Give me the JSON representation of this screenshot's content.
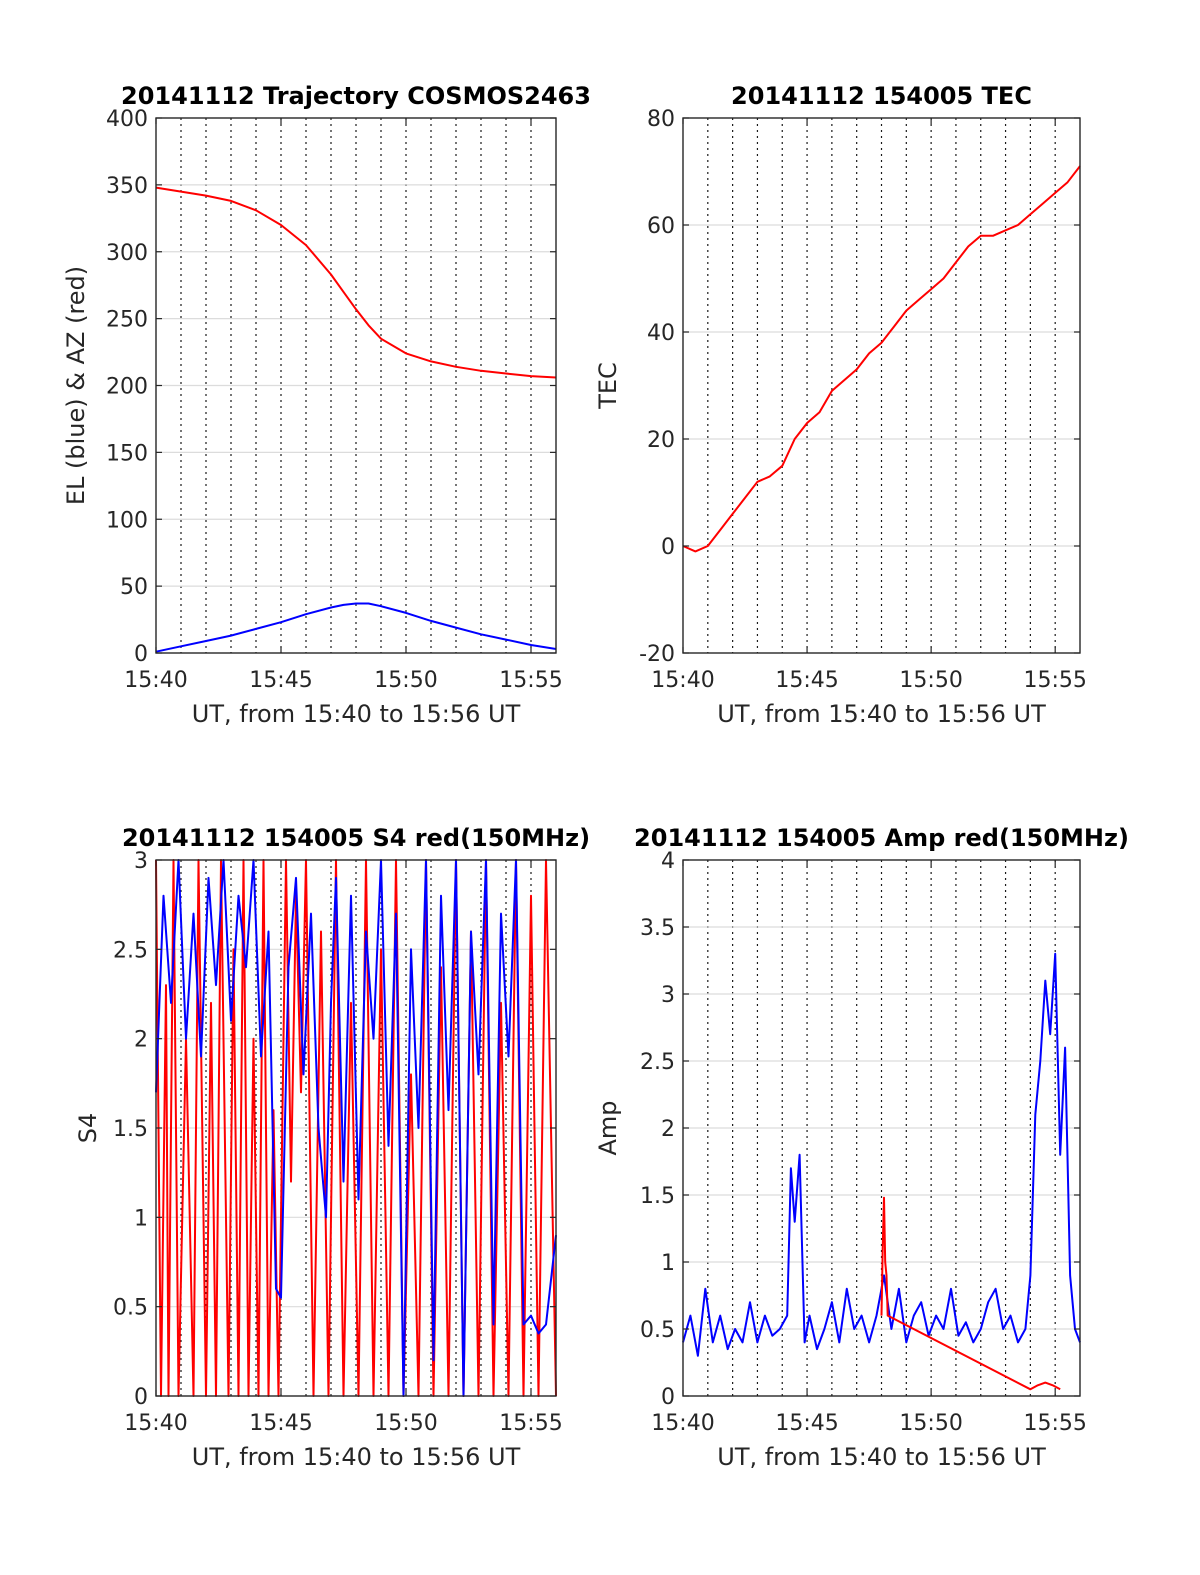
{
  "chart_data": [
    {
      "type": "line",
      "title": "20141112 Trajectory COSMOS2463",
      "xlabel": "UT, from 15:40 to 15:56 UT",
      "ylabel": "EL (blue) & AZ (red)",
      "xlim": [
        0,
        16
      ],
      "ylim": [
        0,
        400
      ],
      "x_ticks": [
        0,
        5,
        10,
        15
      ],
      "x_tick_labels": [
        "15:40",
        "15:45",
        "15:50",
        "15:55"
      ],
      "y_ticks": [
        0,
        50,
        100,
        150,
        200,
        250,
        300,
        350,
        400
      ],
      "y_tick_labels": [
        "0",
        "50",
        "100",
        "150",
        "200",
        "250",
        "300",
        "350",
        "400"
      ],
      "grid": "on",
      "series": [
        {
          "color": "#ff0000",
          "x": [
            0,
            1,
            2,
            3,
            4,
            5,
            6,
            7,
            7.5,
            8,
            8.5,
            9,
            10,
            11,
            12,
            13,
            14,
            15,
            16
          ],
          "values": [
            348,
            345,
            342,
            338,
            331,
            320,
            305,
            283,
            270,
            257,
            245,
            235,
            224,
            218,
            214,
            211,
            209,
            207,
            206
          ]
        },
        {
          "color": "#0000ff",
          "x": [
            0,
            1,
            2,
            3,
            4,
            5,
            6,
            7,
            7.5,
            8,
            8.5,
            9,
            10,
            11,
            12,
            13,
            14,
            15,
            16
          ],
          "values": [
            1,
            5,
            9,
            13,
            18,
            23,
            29,
            34,
            36,
            37,
            37,
            35,
            30,
            24,
            19,
            14,
            10,
            6,
            3
          ]
        }
      ]
    },
    {
      "type": "line",
      "title": "20141112 154005 TEC",
      "xlabel": "UT, from 15:40 to 15:56 UT",
      "ylabel": "TEC",
      "xlim": [
        0,
        16
      ],
      "ylim": [
        -20,
        80
      ],
      "x_ticks": [
        0,
        5,
        10,
        15
      ],
      "x_tick_labels": [
        "15:40",
        "15:45",
        "15:50",
        "15:55"
      ],
      "y_ticks": [
        -20,
        0,
        20,
        40,
        60,
        80
      ],
      "y_tick_labels": [
        "-20",
        "0",
        "20",
        "40",
        "60",
        "80"
      ],
      "grid": "on",
      "series": [
        {
          "color": "#ff0000",
          "x": [
            0,
            0.5,
            1,
            1.5,
            2,
            2.5,
            3,
            3.5,
            4,
            4.5,
            5,
            5.5,
            6,
            6.5,
            7,
            7.5,
            8,
            8.5,
            9,
            9.5,
            10,
            10.5,
            11,
            11.5,
            12,
            12.5,
            13,
            13.5,
            14,
            14.5,
            15,
            15.5,
            16
          ],
          "values": [
            0,
            -1,
            0,
            3,
            6,
            9,
            12,
            13,
            15,
            20,
            23,
            25,
            29,
            31,
            33,
            36,
            38,
            41,
            44,
            46,
            48,
            50,
            53,
            56,
            58,
            58,
            59,
            60,
            62,
            64,
            66,
            68,
            71
          ]
        }
      ]
    },
    {
      "type": "line",
      "title": "20141112 154005 S4 red(150MHz)",
      "xlabel": "UT, from 15:40 to 15:56 UT",
      "ylabel": "S4",
      "xlim": [
        0,
        16
      ],
      "ylim": [
        0,
        3
      ],
      "x_ticks": [
        0,
        5,
        10,
        15
      ],
      "x_tick_labels": [
        "15:40",
        "15:45",
        "15:50",
        "15:55"
      ],
      "y_ticks": [
        0,
        0.5,
        1,
        1.5,
        2,
        2.5,
        3
      ],
      "y_tick_labels": [
        "0",
        "0.5",
        "1",
        "1.5",
        "2",
        "2.5",
        "3"
      ],
      "grid": "on",
      "series": [
        {
          "color": "#ff0000",
          "x": [
            0,
            0.2,
            0.4,
            0.5,
            0.7,
            0.9,
            1.2,
            1.5,
            1.7,
            2.0,
            2.2,
            2.4,
            2.6,
            2.9,
            3.1,
            3.3,
            3.5,
            3.7,
            3.9,
            4.1,
            4.3,
            4.5,
            4.7,
            4.9,
            5.2,
            5.4,
            5.6,
            5.8,
            6.0,
            6.3,
            6.6,
            6.9,
            7.2,
            7.5,
            7.8,
            8.1,
            8.4,
            8.7,
            9.0,
            9.3,
            9.6,
            9.9,
            10.2,
            10.5,
            10.8,
            11.1,
            11.4,
            11.7,
            12.0,
            12.3,
            12.6,
            12.9,
            13.2,
            13.5,
            13.8,
            14.1,
            14.4,
            14.7,
            15.0,
            15.3,
            15.6,
            16.0
          ],
          "values": [
            3.0,
            0.0,
            2.3,
            0.0,
            3.0,
            0.0,
            2.0,
            0.0,
            3.0,
            0.0,
            2.2,
            0.0,
            3.0,
            0.0,
            2.5,
            0.0,
            3.0,
            0.0,
            2.0,
            0.0,
            3.0,
            0.0,
            1.6,
            0.0,
            3.0,
            1.2,
            2.8,
            1.7,
            3.0,
            0.0,
            2.6,
            0.0,
            3.0,
            0.0,
            2.2,
            0.0,
            3.0,
            0.0,
            2.5,
            0.0,
            3.0,
            0.0,
            1.8,
            0.0,
            3.0,
            0.0,
            2.4,
            0.0,
            3.0,
            0.0,
            2.6,
            0.0,
            3.0,
            0.0,
            2.2,
            0.0,
            3.0,
            0.0,
            2.8,
            0.0,
            3.0,
            0.0
          ]
        },
        {
          "color": "#0000ff",
          "x": [
            0,
            0.3,
            0.6,
            0.9,
            1.2,
            1.5,
            1.8,
            2.1,
            2.4,
            2.7,
            3.0,
            3.3,
            3.6,
            3.9,
            4.2,
            4.5,
            4.8,
            5.0,
            5.3,
            5.6,
            5.9,
            6.2,
            6.5,
            6.8,
            7.0,
            7.2,
            7.5,
            7.8,
            8.1,
            8.4,
            8.7,
            9.0,
            9.3,
            9.6,
            9.9,
            10.2,
            10.5,
            10.8,
            11.1,
            11.4,
            11.7,
            12.0,
            12.3,
            12.6,
            12.9,
            13.2,
            13.5,
            13.8,
            14.1,
            14.4,
            14.7,
            15.0,
            15.3,
            15.6,
            16.0
          ],
          "values": [
            1.7,
            2.8,
            2.2,
            3.0,
            2.0,
            2.7,
            1.9,
            2.9,
            2.3,
            3.0,
            2.1,
            2.8,
            2.4,
            3.0,
            1.9,
            2.6,
            0.6,
            0.55,
            2.4,
            2.9,
            1.8,
            2.7,
            1.5,
            1.0,
            2.2,
            2.9,
            1.2,
            2.8,
            1.1,
            2.6,
            2.0,
            3.0,
            1.4,
            2.7,
            0.0,
            2.5,
            1.5,
            3.0,
            0.2,
            2.8,
            1.6,
            3.0,
            0.0,
            2.6,
            1.8,
            3.0,
            0.4,
            2.7,
            1.9,
            3.0,
            0.4,
            0.45,
            0.35,
            0.4,
            0.9
          ]
        }
      ]
    },
    {
      "type": "line",
      "title": "20141112 154005 Amp red(150MHz)",
      "xlabel": "UT, from 15:40 to 15:56 UT",
      "ylabel": "Amp",
      "xlim": [
        0,
        16
      ],
      "ylim": [
        0,
        4
      ],
      "x_ticks": [
        0,
        5,
        10,
        15
      ],
      "x_tick_labels": [
        "15:40",
        "15:45",
        "15:50",
        "15:55"
      ],
      "y_ticks": [
        0,
        0.5,
        1,
        1.5,
        2,
        2.5,
        3,
        3.5,
        4
      ],
      "y_tick_labels": [
        "0",
        "0.5",
        "1",
        "1.5",
        "2",
        "2.5",
        "3",
        "3.5",
        "4"
      ],
      "grid": "on",
      "series": [
        {
          "color": "#0000ff",
          "x": [
            0,
            0.3,
            0.6,
            0.9,
            1.2,
            1.5,
            1.8,
            2.1,
            2.4,
            2.7,
            3.0,
            3.3,
            3.6,
            3.9,
            4.2,
            4.35,
            4.5,
            4.7,
            4.9,
            5.1,
            5.4,
            5.7,
            6.0,
            6.3,
            6.6,
            6.9,
            7.2,
            7.5,
            7.8,
            8.1,
            8.4,
            8.7,
            9.0,
            9.3,
            9.6,
            9.9,
            10.2,
            10.5,
            10.8,
            11.1,
            11.4,
            11.7,
            12.0,
            12.3,
            12.6,
            12.9,
            13.2,
            13.5,
            13.8,
            14.0,
            14.2,
            14.4,
            14.6,
            14.8,
            15.0,
            15.2,
            15.4,
            15.6,
            15.8,
            16.0
          ],
          "values": [
            0.4,
            0.6,
            0.3,
            0.8,
            0.4,
            0.6,
            0.35,
            0.5,
            0.4,
            0.7,
            0.4,
            0.6,
            0.45,
            0.5,
            0.6,
            1.7,
            1.3,
            1.8,
            0.4,
            0.6,
            0.35,
            0.5,
            0.7,
            0.4,
            0.8,
            0.5,
            0.6,
            0.4,
            0.6,
            0.9,
            0.5,
            0.8,
            0.4,
            0.6,
            0.7,
            0.45,
            0.6,
            0.5,
            0.8,
            0.45,
            0.55,
            0.4,
            0.5,
            0.7,
            0.8,
            0.5,
            0.6,
            0.4,
            0.5,
            0.9,
            2.1,
            2.5,
            3.1,
            2.7,
            3.3,
            1.8,
            2.6,
            0.9,
            0.5,
            0.4
          ]
        },
        {
          "color": "#ff0000",
          "x": [
            8.0,
            8.05,
            8.1,
            8.15,
            8.2,
            8.25,
            14.0,
            14.3,
            14.6,
            14.9,
            15.2
          ],
          "values": [
            0.6,
            1.1,
            1.48,
            1.0,
            0.9,
            0.6,
            0.05,
            0.08,
            0.1,
            0.08,
            0.05
          ]
        }
      ]
    }
  ]
}
